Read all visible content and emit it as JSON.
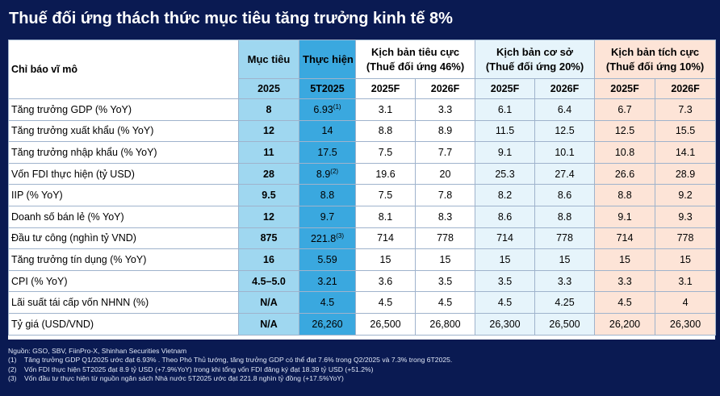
{
  "title": "Thuế đối ứng thách thức mục tiêu tăng trưởng kinh tế 8%",
  "header": {
    "indicator": "Chỉ báo vĩ mô",
    "target": "Mục tiêu",
    "target_year": "2025",
    "actual": "Thực hiện",
    "actual_period": "5T2025",
    "negative": "Kịch bản tiêu cực",
    "negative_tariff": "(Thuế đối ứng 46%)",
    "base": "Kịch bản cơ sở",
    "base_tariff": "(Thuế đối ứng 20%)",
    "positive": "Kịch bản tích cực",
    "positive_tariff": "(Thuế đối ứng 10%)",
    "y2025f": "2025F",
    "y2026f": "2026F"
  },
  "rows": [
    {
      "label": "Tăng trưởng GDP (% YoY)",
      "target": "8",
      "actual": "6.93",
      "sup": "1",
      "neg25": "3.1",
      "neg26": "3.3",
      "base25": "6.1",
      "base26": "6.4",
      "pos25": "6.7",
      "pos26": "7.3"
    },
    {
      "label": "Tăng trưởng xuất khẩu (% YoY)",
      "target": "12",
      "actual": "14",
      "sup": "",
      "neg25": "8.8",
      "neg26": "8.9",
      "base25": "11.5",
      "base26": "12.5",
      "pos25": "12.5",
      "pos26": "15.5"
    },
    {
      "label": "Tăng trưởng nhập khẩu (% YoY)",
      "target": "11",
      "actual": "17.5",
      "sup": "",
      "neg25": "7.5",
      "neg26": "7.7",
      "base25": "9.1",
      "base26": "10.1",
      "pos25": "10.8",
      "pos26": "14.1"
    },
    {
      "label": "Vốn FDI thực hiện (tỷ USD)",
      "target": "28",
      "actual": "8.9",
      "sup": "2",
      "neg25": "19.6",
      "neg26": "20",
      "base25": "25.3",
      "base26": "27.4",
      "pos25": "26.6",
      "pos26": "28.9"
    },
    {
      "label": "IIP (% YoY)",
      "target": "9.5",
      "actual": "8.8",
      "sup": "",
      "neg25": "7.5",
      "neg26": "7.8",
      "base25": "8.2",
      "base26": "8.6",
      "pos25": "8.8",
      "pos26": "9.2"
    },
    {
      "label": "Doanh số bán lẻ (% YoY)",
      "target": "12",
      "actual": "9.7",
      "sup": "",
      "neg25": "8.1",
      "neg26": "8.3",
      "base25": "8.6",
      "base26": "8.8",
      "pos25": "9.1",
      "pos26": "9.3"
    },
    {
      "label": "Đầu tư công (nghìn tỷ VND)",
      "target": "875",
      "actual": "221.8",
      "sup": "3",
      "neg25": "714",
      "neg26": "778",
      "base25": "714",
      "base26": "778",
      "pos25": "714",
      "pos26": "778"
    },
    {
      "label": "Tăng trưởng tín dụng (% YoY)",
      "target": "16",
      "actual": "5.59",
      "sup": "",
      "neg25": "15",
      "neg26": "15",
      "base25": "15",
      "base26": "15",
      "pos25": "15",
      "pos26": "15"
    },
    {
      "label": "CPI (% YoY)",
      "target": "4.5–5.0",
      "actual": "3.21",
      "sup": "",
      "neg25": "3.6",
      "neg26": "3.5",
      "base25": "3.5",
      "base26": "3.3",
      "pos25": "3.3",
      "pos26": "3.1"
    },
    {
      "label": "Lãi suất tái cấp vốn NHNN (%)",
      "target": "N/A",
      "actual": "4.5",
      "sup": "",
      "neg25": "4.5",
      "neg26": "4.5",
      "base25": "4.5",
      "base26": "4.25",
      "pos25": "4.5",
      "pos26": "4"
    },
    {
      "label": "Tỷ giá (USD/VND)",
      "target": "N/A",
      "actual": "26,260",
      "sup": "",
      "neg25": "26,500",
      "neg26": "26,800",
      "base25": "26,300",
      "base26": "26,500",
      "pos25": "26,200",
      "pos26": "26,300"
    }
  ],
  "notes": {
    "source": "Nguồn: GSO, SBV, FiinPro-X, Shinhan Securities Vietnam",
    "items": [
      {
        "num": "(1)",
        "text": "Tăng trưởng GDP Q1/2025 ước đạt 6.93% . Theo Phó Thủ tướng, tăng trưởng GDP có thể đạt 7.6% trong Q2/2025 và 7.3% trong 6T2025."
      },
      {
        "num": "(2)",
        "text": "Vốn FDI thực hiện 5T2025 đạt 8.9 tỷ USD (+7.9%YoY) trong khi tổng vốn FDI đăng ký đạt 18.39 tỷ USD (+51.2%)"
      },
      {
        "num": "(3)",
        "text": "Vốn đầu tư thực hiện từ nguồn ngân sách Nhà nước 5T2025  ước đạt 221.8 nghìn tỷ đồng (+17.5%YoY)"
      }
    ]
  }
}
